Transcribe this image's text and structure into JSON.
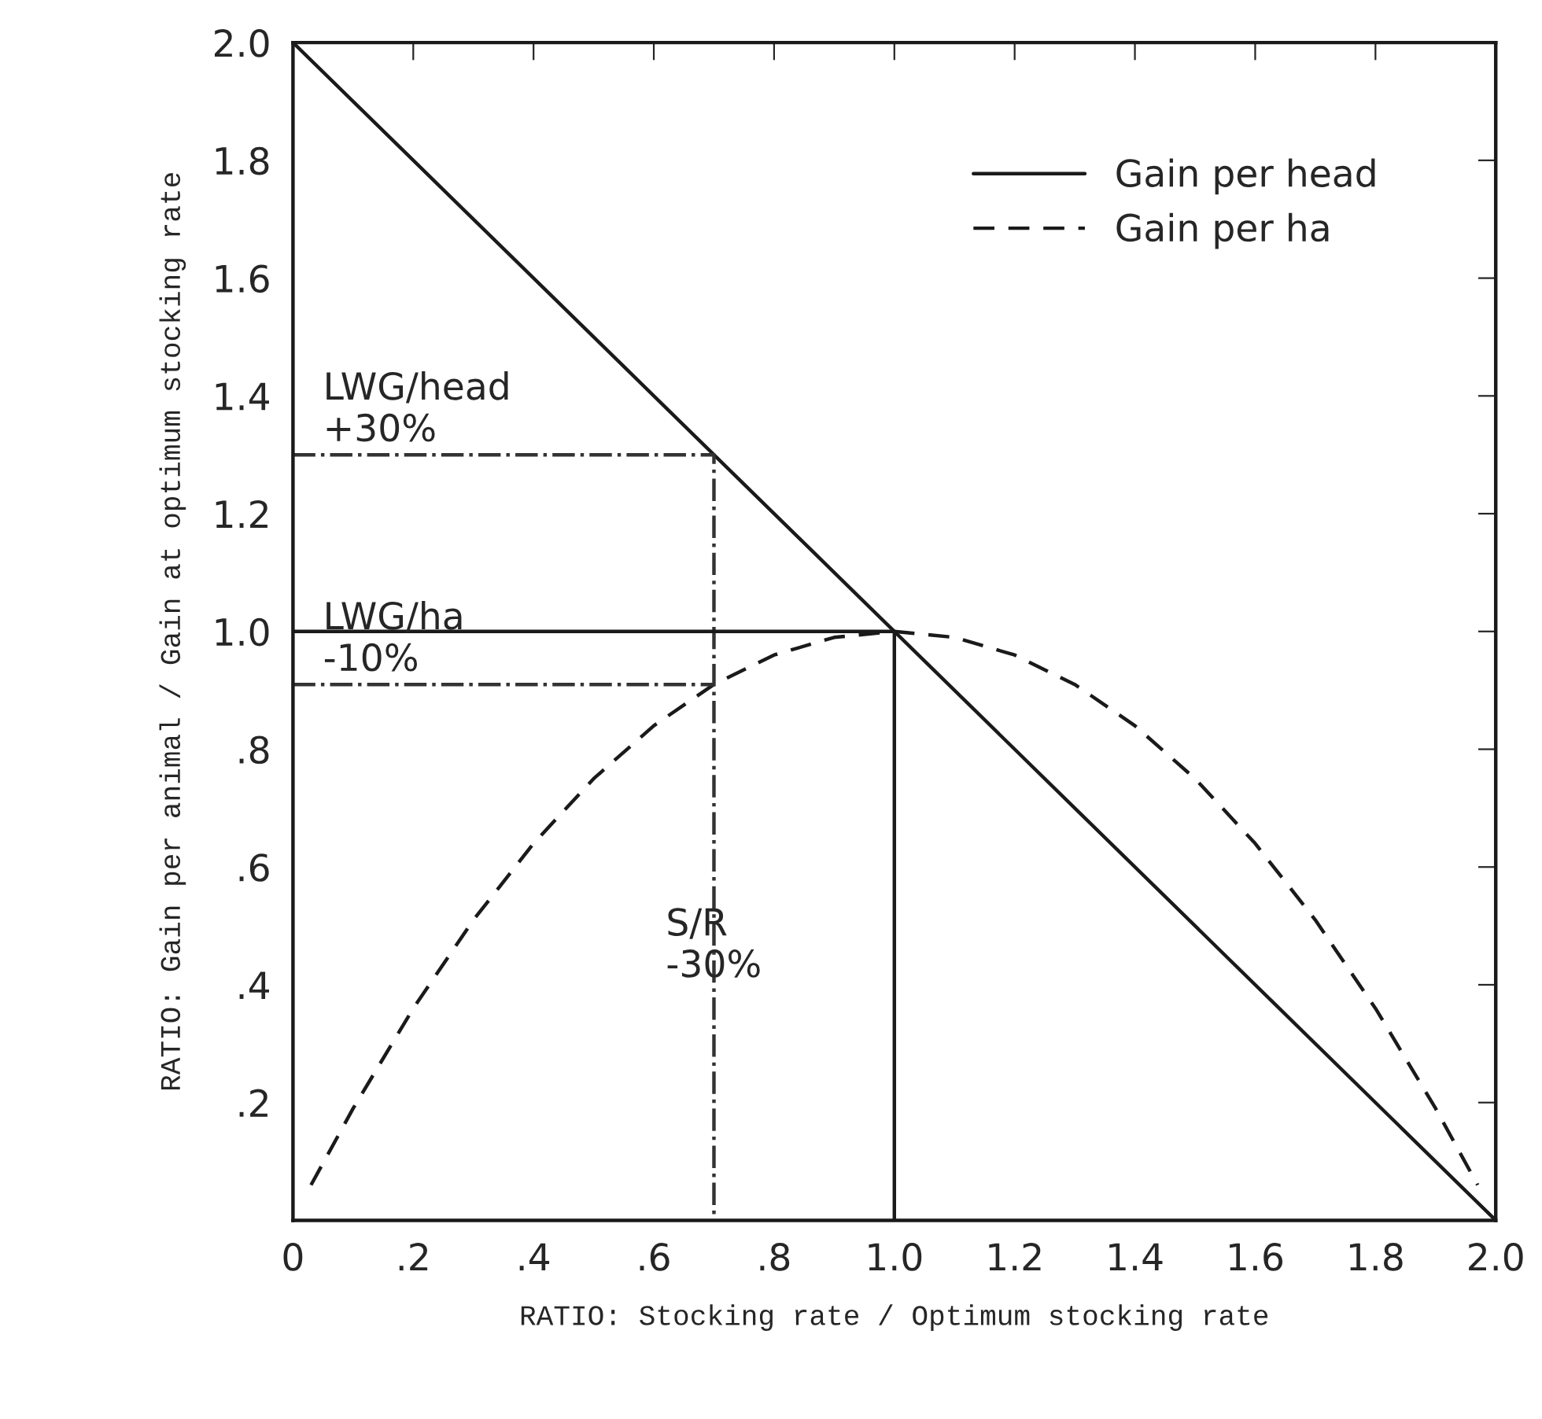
{
  "chart_data": {
    "type": "line",
    "xlabel": "RATIO: Stocking rate / Optimum stocking rate",
    "ylabel": "RATIO: Gain per animal / Gain at optimum stocking rate",
    "xlim": [
      0,
      2
    ],
    "ylim": [
      0,
      2
    ],
    "xticks": [
      {
        "value": 0,
        "label": "0"
      },
      {
        "value": 0.2,
        "label": ".2"
      },
      {
        "value": 0.4,
        "label": ".4"
      },
      {
        "value": 0.6,
        "label": ".6"
      },
      {
        "value": 0.8,
        "label": ".8"
      },
      {
        "value": 1.0,
        "label": "1.0"
      },
      {
        "value": 1.2,
        "label": "1.2"
      },
      {
        "value": 1.4,
        "label": "1.4"
      },
      {
        "value": 1.6,
        "label": "1.6"
      },
      {
        "value": 1.8,
        "label": "1.8"
      },
      {
        "value": 2.0,
        "label": "2.0"
      }
    ],
    "yticks": [
      {
        "value": 0,
        "label": null
      },
      {
        "value": 0.2,
        "label": ".2"
      },
      {
        "value": 0.4,
        "label": ".4"
      },
      {
        "value": 0.6,
        "label": ".6"
      },
      {
        "value": 0.8,
        "label": ".8"
      },
      {
        "value": 1.0,
        "label": "1.0"
      },
      {
        "value": 1.2,
        "label": "1.2"
      },
      {
        "value": 1.4,
        "label": "1.4"
      },
      {
        "value": 1.6,
        "label": "1.6"
      },
      {
        "value": 1.8,
        "label": "1.8"
      },
      {
        "value": 2.0,
        "label": "2.0"
      }
    ],
    "grid": false,
    "legend": "top right",
    "series": [
      {
        "name": "Gain per head",
        "color": "#1a1a1a",
        "line_style": "solid",
        "x": [
          0,
          2
        ],
        "values": [
          2,
          0
        ]
      },
      {
        "name": "Gain per ha",
        "color": "#1a1a1a",
        "line_style": "dashed",
        "x": [
          0.03,
          0.1,
          0.2,
          0.3,
          0.4,
          0.5,
          0.6,
          0.7,
          0.8,
          0.9,
          1.0,
          1.1,
          1.2,
          1.3,
          1.4,
          1.5,
          1.6,
          1.7,
          1.8,
          1.9,
          1.97
        ],
        "values": [
          0.06,
          0.19,
          0.36,
          0.51,
          0.64,
          0.75,
          0.84,
          0.91,
          0.96,
          0.99,
          1.0,
          0.99,
          0.96,
          0.91,
          0.84,
          0.75,
          0.64,
          0.51,
          0.36,
          0.19,
          0.06
        ]
      },
      {
        "color": "#333333",
        "line_style": "dotted",
        "x": [
          0,
          0.7,
          0.7
        ],
        "values": [
          1.3,
          1.3,
          0
        ]
      },
      {
        "color": "#333333",
        "line_style": "dotted",
        "x": [
          0,
          0.7
        ],
        "values": [
          0.91,
          0.91
        ]
      },
      {
        "color": "#1a1a1a",
        "line_style": "solid",
        "x": [
          0,
          1.0,
          1.0
        ],
        "values": [
          1.0,
          1.0,
          0
        ]
      }
    ],
    "annotations": [
      "LWG/head\n+30%",
      "LWG/ha\n-10%",
      "S/R\n-30%"
    ]
  }
}
